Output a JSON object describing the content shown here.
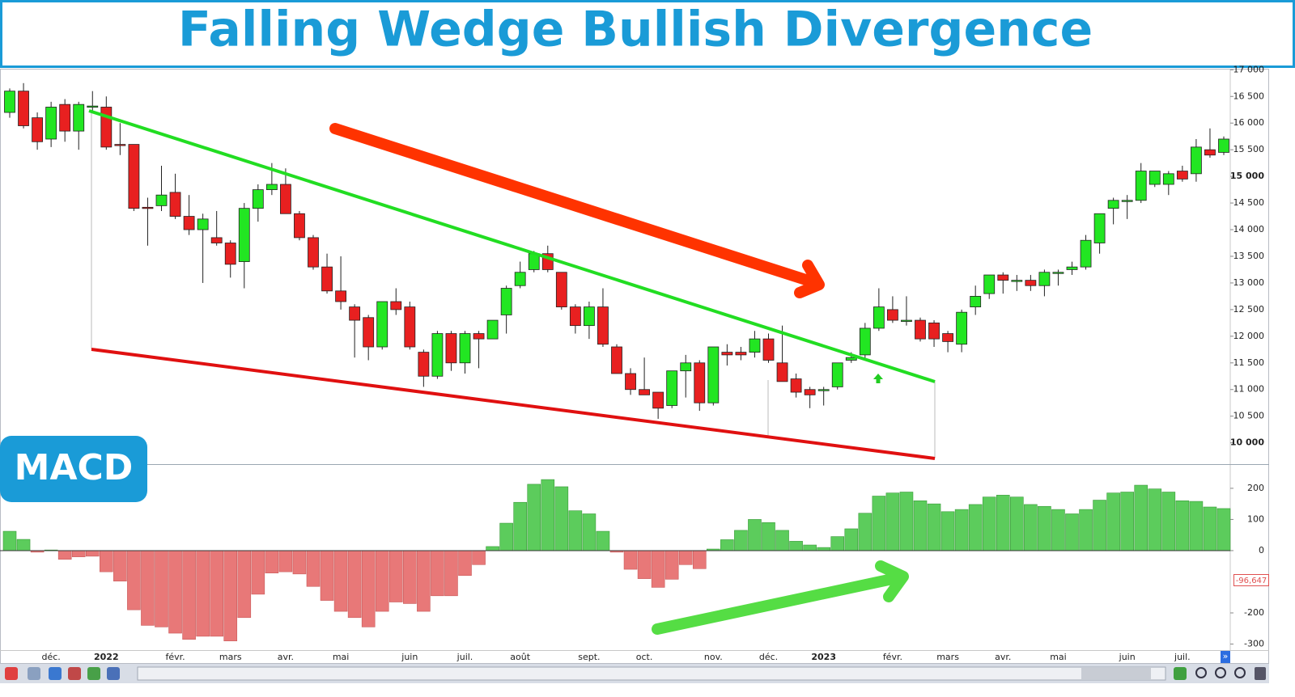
{
  "chart_data": [
    {
      "type": "candlestick",
      "title": "Falling Wedge Bullish Divergence",
      "categories": [
        null,
        null,
        null,
        "déc.",
        null,
        null,
        null,
        "2022",
        null,
        null,
        null,
        null,
        "févr.",
        null,
        null,
        null,
        "mars",
        null,
        null,
        null,
        "avr.",
        null,
        null,
        null,
        "mai",
        null,
        null,
        null,
        null,
        "juin",
        null,
        null,
        null,
        "juil.",
        null,
        null,
        null,
        "août",
        null,
        null,
        null,
        null,
        "sept.",
        null,
        null,
        null,
        "oct.",
        null,
        null,
        null,
        null,
        "nov.",
        null,
        null,
        null,
        "déc.",
        null,
        null,
        null,
        "2023",
        null,
        null,
        null,
        null,
        "févr.",
        null,
        null,
        null,
        "mars",
        null,
        null,
        null,
        "avr.",
        null,
        null,
        null,
        "mai",
        null,
        null,
        null,
        null,
        "juin",
        null,
        null,
        null,
        "juil.",
        null,
        null,
        null
      ],
      "open": [
        16200,
        16600,
        16100,
        15700,
        16350,
        15850,
        16300,
        16300,
        15600,
        15600,
        14420,
        14450,
        14700,
        14250,
        14000,
        13850,
        13750,
        13400,
        14400,
        14750,
        14850,
        14300,
        13850,
        13300,
        12850,
        12550,
        12350,
        11800,
        12650,
        12550,
        11700,
        11250,
        12050,
        11500,
        12050,
        11950,
        12400,
        12950,
        13250,
        13550,
        13200,
        12550,
        12200,
        12550,
        11800,
        11300,
        11000,
        10950,
        10700,
        11350,
        11500,
        10750,
        11700,
        11700,
        11700,
        11950,
        11500,
        11200,
        11000,
        11000,
        11050,
        11550,
        11650,
        12150,
        12500,
        12300,
        12300,
        12250,
        12050,
        11850,
        12550,
        12800,
        13150,
        13050,
        13050,
        12950,
        13200,
        13250,
        13300,
        13750,
        14400,
        14550,
        14550,
        14850,
        14850,
        15100,
        15050,
        15500,
        15450
      ],
      "high": [
        16650,
        16750,
        16200,
        16400,
        16450,
        16400,
        16600,
        16500,
        16000,
        15600,
        14600,
        15200,
        15050,
        14650,
        14300,
        14350,
        13800,
        14500,
        14850,
        15250,
        15150,
        14350,
        13900,
        13550,
        13500,
        12600,
        12400,
        12650,
        12900,
        12650,
        11750,
        12100,
        12100,
        12100,
        12100,
        12300,
        12950,
        13400,
        13600,
        13700,
        13200,
        12600,
        12650,
        12900,
        11850,
        11400,
        11600,
        10950,
        11350,
        11650,
        11550,
        11800,
        11850,
        11800,
        12100,
        12050,
        12200,
        11300,
        11050,
        11050,
        11500,
        11700,
        12250,
        12900,
        12750,
        12750,
        12350,
        12300,
        12100,
        12500,
        12950,
        13150,
        13200,
        13150,
        13150,
        13250,
        13250,
        13400,
        13900,
        14300,
        14600,
        14650,
        15250,
        15100,
        15100,
        15200,
        15700,
        15900,
        15750
      ],
      "low": [
        16100,
        15900,
        15500,
        15550,
        15650,
        15500,
        16200,
        15500,
        15400,
        14350,
        13700,
        14350,
        14200,
        13900,
        13000,
        13700,
        13100,
        12900,
        14150,
        14650,
        14300,
        13800,
        13250,
        12800,
        12500,
        11600,
        11550,
        11750,
        12400,
        11750,
        11050,
        11200,
        11350,
        11300,
        11400,
        11950,
        12050,
        12900,
        13200,
        13200,
        12500,
        12050,
        11950,
        11800,
        11300,
        10900,
        10900,
        10450,
        10650,
        10850,
        10600,
        10700,
        11450,
        11550,
        11600,
        11500,
        11150,
        10850,
        10650,
        10700,
        11000,
        11500,
        11550,
        12100,
        12250,
        12200,
        11900,
        11800,
        11700,
        11700,
        12400,
        12700,
        12800,
        12850,
        12850,
        12750,
        12950,
        13150,
        13250,
        13550,
        14100,
        14200,
        14500,
        14800,
        14650,
        14900,
        14900,
        15350,
        15400
      ],
      "close": [
        16600,
        15950,
        15650,
        16300,
        15850,
        16350,
        16320,
        15550,
        15580,
        14400,
        14400,
        14650,
        14250,
        14000,
        14200,
        13750,
        13350,
        14400,
        14750,
        14850,
        14300,
        13850,
        13300,
        12850,
        12650,
        12300,
        11800,
        12650,
        12500,
        11800,
        11250,
        12050,
        11500,
        12050,
        11950,
        12300,
        12900,
        13200,
        13550,
        13250,
        12550,
        12200,
        12550,
        11850,
        11300,
        11000,
        10900,
        10650,
        11350,
        11500,
        10750,
        11800,
        11650,
        11650,
        11950,
        11550,
        11150,
        10950,
        10900,
        11000,
        11500,
        11600,
        12150,
        12550,
        12300,
        12300,
        11950,
        11950,
        11900,
        12450,
        12750,
        13150,
        13050,
        13050,
        12950,
        13200,
        13200,
        13300,
        13800,
        14300,
        14550,
        14550,
        15100,
        15100,
        15050,
        14950,
        15550,
        15400,
        15700
      ],
      "up_color": "#22e622",
      "down_color": "#e82020",
      "ylim": [
        9600,
        17020
      ],
      "yticks": [
        {
          "value": 10000,
          "label": "10 000"
        },
        {
          "value": 10500,
          "label": "10 500"
        },
        {
          "value": 11000,
          "label": "11 000"
        },
        {
          "value": 11500,
          "label": "11 500"
        },
        {
          "value": 12000,
          "label": "12 000"
        },
        {
          "value": 12500,
          "label": "12 500"
        },
        {
          "value": 13000,
          "label": "13 000"
        },
        {
          "value": 13500,
          "label": "13 500"
        },
        {
          "value": 14000,
          "label": "14 000"
        },
        {
          "value": 14500,
          "label": "14 500"
        },
        {
          "value": 15000,
          "label": "15 000"
        },
        {
          "value": 15500,
          "label": "15 500"
        },
        {
          "value": 16000,
          "label": "16 000"
        },
        {
          "value": 16500,
          "label": "16 500"
        },
        {
          "value": 17000,
          "label": "17 000"
        }
      ],
      "grid": false
    },
    {
      "type": "bar",
      "title": "MACD",
      "values": [
        62,
        36,
        -5,
        2,
        -28,
        -20,
        -18,
        -68,
        -98,
        -190,
        -240,
        -245,
        -265,
        -285,
        -275,
        -275,
        -290,
        -215,
        -140,
        -72,
        -68,
        -75,
        -115,
        -160,
        -195,
        -215,
        -245,
        -195,
        -165,
        -170,
        -195,
        -145,
        -145,
        -80,
        -45,
        13,
        88,
        155,
        213,
        228,
        205,
        128,
        118,
        62,
        -5,
        -60,
        -90,
        -118,
        -92,
        -45,
        -58,
        5,
        35,
        65,
        100,
        90,
        65,
        30,
        18,
        10,
        45,
        70,
        120,
        175,
        185,
        188,
        160,
        150,
        125,
        132,
        148,
        172,
        178,
        172,
        148,
        142,
        132,
        118,
        132,
        162,
        185,
        188,
        210,
        198,
        188,
        160,
        158,
        140,
        135
      ],
      "pos_color": "#5ccc5c",
      "neg_color": "#e87878",
      "annotation": "-96,647",
      "ylim": [
        -322,
        275
      ],
      "yticks": [
        200,
        100,
        0,
        -200,
        -300
      ],
      "grid": false
    }
  ]
}
